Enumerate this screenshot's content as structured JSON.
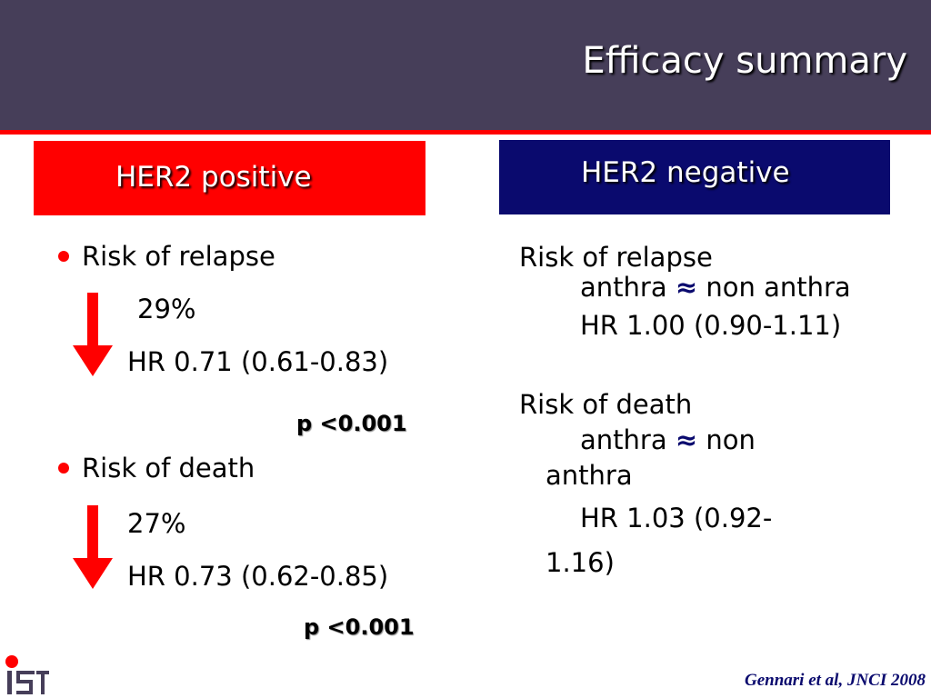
{
  "slide": {
    "title": "Efficacy summary",
    "logo_text": "IST",
    "citation": "Gennari et al, JNCI 2008"
  },
  "colors": {
    "header_bg": "#463e59",
    "accent_red": "#ff0000",
    "navy": "#0a0a6e"
  },
  "her2_positive": {
    "heading": "HER2 positive",
    "relapse": {
      "label": "Risk of relapse",
      "reduction": "29%",
      "direction": "arrow-down-icon",
      "hr": "HR 0.71 (0.61-0.83)",
      "p": "p <0.001"
    },
    "death": {
      "label": "Risk of death",
      "reduction": "27%",
      "direction": "arrow-down-icon",
      "hr": "HR 0.73 (0.62-0.85)",
      "p": "p <0.001"
    }
  },
  "her2_negative": {
    "heading": "HER2 negative",
    "relapse": {
      "label": "Risk of relapse",
      "comparison_left": "anthra",
      "approx_symbol": "≈",
      "comparison_right": "non anthra",
      "hr": "HR 1.00 (0.90-1.11)"
    },
    "death": {
      "label": "Risk of death",
      "comparison_left": "anthra",
      "approx_symbol": "≈",
      "comparison_right_line1": "non",
      "comparison_right_line2": "anthra",
      "hr_line1": "HR 1.03 (0.92-",
      "hr_line2": "1.16)"
    }
  }
}
